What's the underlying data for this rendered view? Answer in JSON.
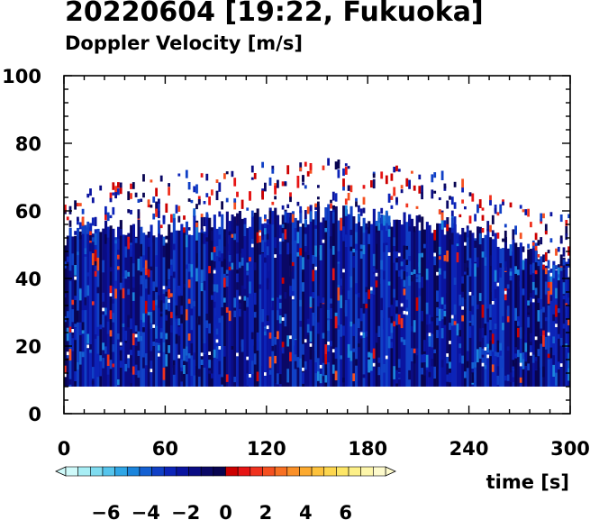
{
  "header": {
    "title": "20220604 [19:22, Fukuoka]",
    "subtitle": "Doppler Velocity [m/s]"
  },
  "chart_data": {
    "type": "heatmap",
    "title": "20220604 [19:22, Fukuoka]",
    "subtitle": "Doppler Velocity [m/s]",
    "xlabel": "time [s]",
    "ylabel": "",
    "xlim": [
      0,
      300
    ],
    "ylim": [
      0,
      100
    ],
    "xticks": [
      0,
      60,
      120,
      180,
      240,
      300
    ],
    "yticks": [
      0,
      20,
      40,
      60,
      80,
      100
    ],
    "grid": false,
    "data_extent": {
      "x": [
        0,
        300
      ],
      "y_min": 8
    },
    "echo_top_profile": {
      "x": [
        0,
        20,
        40,
        60,
        80,
        100,
        120,
        140,
        160,
        180,
        200,
        220,
        240,
        260,
        280,
        300
      ],
      "dense_top": [
        52,
        54,
        55,
        55,
        56,
        57,
        58,
        59,
        59,
        58,
        57,
        56,
        55,
        50,
        46,
        43
      ],
      "sparse_top": [
        62,
        66,
        68,
        70,
        71,
        72,
        73,
        74,
        74,
        74,
        72,
        70,
        66,
        63,
        60,
        58
      ]
    },
    "colorbar": {
      "range": [
        -8,
        8
      ],
      "ticks": [
        -6,
        -4,
        -2,
        0,
        2,
        4,
        6
      ],
      "tick_labels": [
        "−6",
        "−4",
        "−2",
        "0",
        "2",
        "4",
        "6"
      ],
      "extend": "both",
      "colors": [
        "#cffafa",
        "#a8eef5",
        "#7fdcf0",
        "#55c4ec",
        "#2fa6e6",
        "#1b85dc",
        "#1460d2",
        "#1040c6",
        "#0c24b8",
        "#0a14a0",
        "#0a0c84",
        "#0a0866",
        "#080450",
        "#cc0000",
        "#e61414",
        "#f0321e",
        "#f55020",
        "#f87022",
        "#fa9028",
        "#fcaa30",
        "#fdc23c",
        "#fdd64e",
        "#fde666",
        "#fdf088",
        "#fdf6aa",
        "#fdfacc"
      ],
      "dominant_colors": {
        "negative": "#0a0c84",
        "positive": "#e61414"
      }
    }
  }
}
